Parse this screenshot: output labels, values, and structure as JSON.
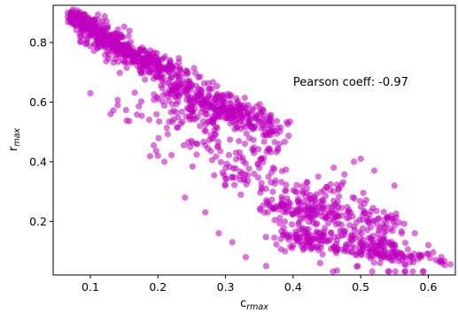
{
  "chart_data": {
    "type": "scatter",
    "title": "",
    "xlabel": {
      "base": "c",
      "sub": "rmax"
    },
    "ylabel": {
      "base": "r",
      "sub": "max"
    },
    "xlim": [
      0.045,
      0.64
    ],
    "ylim": [
      0.02,
      0.925
    ],
    "xticks": [
      0.1,
      0.2,
      0.3,
      0.4,
      0.5,
      0.6
    ],
    "yticks": [
      0.2,
      0.4,
      0.6,
      0.8
    ],
    "xtick_labels": [
      "0.1",
      "0.2",
      "0.3",
      "0.4",
      "0.5",
      "0.6"
    ],
    "ytick_labels": [
      "0.2",
      "0.4",
      "0.6",
      "0.8"
    ],
    "grid": false,
    "annotation": {
      "text": "Pearson coeff: -0.97",
      "x": 0.4,
      "y": 0.655
    },
    "marker_color": "#c000c0",
    "marker_alpha": 0.55,
    "clusters": [
      {
        "x": [
          0.07,
          0.1
        ],
        "y": [
          0.9,
          0.85
        ],
        "spread": 0.012,
        "n": 140
      },
      {
        "x": [
          0.1,
          0.15
        ],
        "y": [
          0.85,
          0.77
        ],
        "spread": 0.02,
        "n": 200
      },
      {
        "x": [
          0.15,
          0.21
        ],
        "y": [
          0.77,
          0.71
        ],
        "spread": 0.02,
        "n": 180
      },
      {
        "x": [
          0.21,
          0.3
        ],
        "y": [
          0.69,
          0.55
        ],
        "spread": 0.03,
        "n": 210
      },
      {
        "x": [
          0.28,
          0.38
        ],
        "y": [
          0.6,
          0.5
        ],
        "spread": 0.025,
        "n": 160
      },
      {
        "x": [
          0.15,
          0.3
        ],
        "y": [
          0.59,
          0.5
        ],
        "spread": 0.03,
        "n": 50
      },
      {
        "x": [
          0.2,
          0.36
        ],
        "y": [
          0.48,
          0.42
        ],
        "spread": 0.03,
        "n": 60
      },
      {
        "x": [
          0.3,
          0.5
        ],
        "y": [
          0.36,
          0.26
        ],
        "spread": 0.03,
        "n": 90
      },
      {
        "x": [
          0.36,
          0.55
        ],
        "y": [
          0.25,
          0.19
        ],
        "spread": 0.025,
        "n": 200
      },
      {
        "x": [
          0.38,
          0.56
        ],
        "y": [
          0.15,
          0.11
        ],
        "spread": 0.018,
        "n": 160
      },
      {
        "x": [
          0.5,
          0.63
        ],
        "y": [
          0.1,
          0.07
        ],
        "spread": 0.012,
        "n": 60
      },
      {
        "x": [
          0.42,
          0.56
        ],
        "y": [
          0.15,
          0.06
        ],
        "spread": 0.04,
        "n": 60
      }
    ],
    "points": [
      [
        0.1,
        0.63
      ],
      [
        0.13,
        0.56
      ],
      [
        0.2,
        0.42
      ],
      [
        0.27,
        0.23
      ],
      [
        0.31,
        0.35
      ],
      [
        0.33,
        0.08
      ],
      [
        0.36,
        0.05
      ],
      [
        0.42,
        0.33
      ],
      [
        0.46,
        0.38
      ],
      [
        0.49,
        0.4
      ],
      [
        0.5,
        0.41
      ],
      [
        0.52,
        0.37
      ],
      [
        0.48,
        0.21
      ],
      [
        0.55,
        0.32
      ],
      [
        0.6,
        0.09
      ],
      [
        0.62,
        0.06
      ],
      [
        0.58,
        0.16
      ],
      [
        0.38,
        0.46
      ],
      [
        0.34,
        0.52
      ],
      [
        0.24,
        0.28
      ],
      [
        0.29,
        0.16
      ],
      [
        0.31,
        0.13
      ],
      [
        0.44,
        0.06
      ],
      [
        0.4,
        0.12
      ],
      [
        0.6,
        0.12
      ]
    ]
  }
}
